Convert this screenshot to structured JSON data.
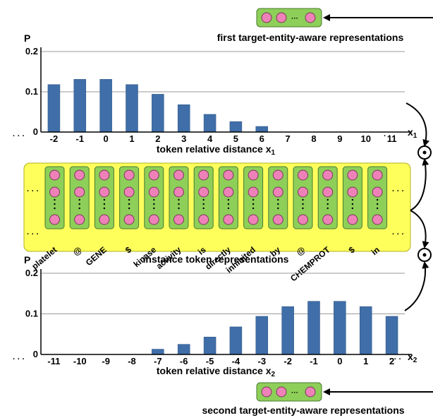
{
  "top_caption": "first target-entity-aware representations",
  "bottom_caption": "second target-entity-aware representations",
  "middle_caption": "instance token representations",
  "ellipsis": "· · ·",
  "chart_data": [
    {
      "type": "bar",
      "ylabel": "P",
      "xlabel_text": "token relative distance ",
      "xlabel_var": "x",
      "xlabel_sub": "1",
      "axis_var": "x",
      "axis_sub": "1",
      "ylim": [
        0,
        0.2
      ],
      "yticks": [
        "0",
        "0.1",
        "0.2"
      ],
      "categories": [
        "-2",
        "-1",
        "0",
        "1",
        "2",
        "3",
        "4",
        "5",
        "6",
        "7",
        "8",
        "9",
        "10",
        "11"
      ],
      "values": [
        0.118,
        0.131,
        0.131,
        0.118,
        0.094,
        0.068,
        0.044,
        0.026,
        0.014,
        0,
        0,
        0,
        0,
        0
      ]
    },
    {
      "type": "bar",
      "ylabel": "P",
      "xlabel_text": "token relative distance ",
      "xlabel_var": "x",
      "xlabel_sub": "2",
      "axis_var": "x",
      "axis_sub": "2",
      "ylim": [
        0,
        0.2
      ],
      "yticks": [
        "0",
        "0.1",
        "0.2"
      ],
      "categories": [
        "-11",
        "-10",
        "-9",
        "-8",
        "-7",
        "-6",
        "-5",
        "-4",
        "-3",
        "-2",
        "-1",
        "0",
        "1",
        "2"
      ],
      "values": [
        0,
        0,
        0,
        0,
        0.013,
        0.025,
        0.043,
        0.068,
        0.094,
        0.118,
        0.131,
        0.131,
        0.118,
        0.094
      ]
    }
  ],
  "tokens": [
    "platelet",
    "@",
    "GENE",
    "$",
    "kinase",
    "activity",
    "is",
    "directly",
    "inhibited",
    "by",
    "@",
    "CHEMPROT",
    "$",
    "in"
  ],
  "colors": {
    "bar": "#3f6ea8",
    "panel": "#ffff5c",
    "cell": "#8dcf58",
    "node": "#ee82b8"
  },
  "operator": "⊙"
}
